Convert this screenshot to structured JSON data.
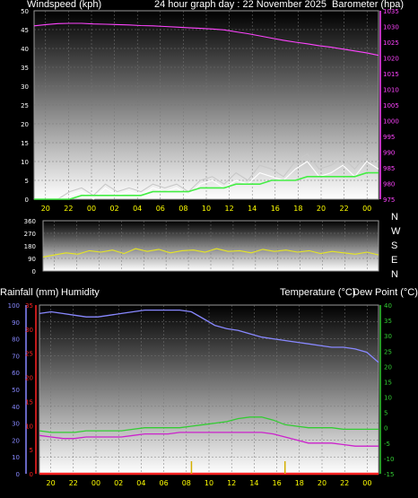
{
  "header": {
    "left_label": "Windspeed (kph)",
    "center_label": "24 hour graph day : 22 November 2025",
    "right_label": "Barometer (hpa)"
  },
  "lower_header": {
    "rainfall_label": "Rainfall (mm)",
    "humidity_label": "Humidity",
    "temperature_label": "Temperature (°C)",
    "dewpoint_label": "Dew Point (°C)"
  },
  "compass": [
    "N",
    "W",
    "S",
    "E",
    "N"
  ],
  "colors": {
    "wind_speed": "#ffffff",
    "wind_gust": "#c8c8c8",
    "wind_avg": "#44ee44",
    "barometer": "#ff44ff",
    "direction": "#e6e620",
    "humidity": "#8888ff",
    "temperature": "#33cc33",
    "dewpoint": "#cc22cc",
    "rainfall": "#ff2222",
    "rain_tick": "#d4b000",
    "axis_text": "#ffffff",
    "time_text": "#ffff00"
  },
  "chart_data": [
    {
      "type": "line",
      "name": "wind-and-pressure",
      "x_tick_labels": [
        "20",
        "22",
        "00",
        "02",
        "04",
        "06",
        "08",
        "10",
        "12",
        "14",
        "16",
        "18",
        "20",
        "22",
        "00"
      ],
      "y_left_ticks": [
        "0",
        "5",
        "10",
        "15",
        "20",
        "25",
        "30",
        "35",
        "40",
        "45",
        "50"
      ],
      "y_right_ticks": [
        "975",
        "980",
        "985",
        "990",
        "995",
        "1000",
        "1005",
        "1010",
        "1015",
        "1020",
        "1025",
        "1030",
        "1035"
      ],
      "ylim_left": [
        0,
        50
      ],
      "ylim_right": [
        975,
        1035
      ],
      "series": [
        {
          "key": "barometer",
          "axis": "right",
          "values": [
            1030.2,
            1030.6,
            1030.9,
            1031,
            1031,
            1030.8,
            1030.7,
            1030.6,
            1030.5,
            1030.3,
            1030.2,
            1030,
            1029.8,
            1029.6,
            1029.4,
            1029.2,
            1028.9,
            1028.3,
            1027.7,
            1027,
            1026.3,
            1025.6,
            1025,
            1024.5,
            1023.9,
            1023.4,
            1022.8,
            1022.2,
            1021.6,
            1020.8
          ]
        },
        {
          "key": "wind_gust",
          "axis": "left",
          "values": [
            0,
            0,
            0,
            2,
            3,
            1,
            4,
            2,
            3,
            2,
            4,
            3,
            4,
            2,
            5,
            6,
            4,
            7,
            5,
            9,
            8,
            6,
            10,
            12,
            8,
            9,
            11,
            8,
            12,
            10
          ]
        },
        {
          "key": "wind_speed",
          "axis": "left",
          "values": [
            0,
            0,
            0,
            1,
            2,
            0,
            3,
            1,
            2,
            1,
            3,
            2,
            3,
            1,
            4,
            5,
            3,
            5,
            4,
            7,
            6,
            5,
            8,
            10,
            6,
            7,
            9,
            6,
            10,
            8
          ]
        },
        {
          "key": "wind_avg",
          "axis": "left",
          "values": [
            0,
            0,
            0,
            0,
            1,
            1,
            1,
            1,
            1,
            1,
            2,
            2,
            2,
            2,
            3,
            3,
            3,
            4,
            4,
            4,
            5,
            5,
            5,
            6,
            6,
            6,
            6,
            6,
            7,
            7
          ]
        }
      ]
    },
    {
      "type": "line",
      "name": "wind-direction",
      "x_tick_labels": [
        "20",
        "22",
        "00",
        "02",
        "04",
        "06",
        "08",
        "10",
        "12",
        "14",
        "16",
        "18",
        "20",
        "22",
        "00"
      ],
      "y_ticks": [
        "0",
        "90",
        "180",
        "270",
        "360"
      ],
      "ylim": [
        0,
        360
      ],
      "series": [
        {
          "key": "direction",
          "values": [
            100,
            115,
            130,
            120,
            145,
            135,
            150,
            125,
            160,
            140,
            155,
            130,
            145,
            150,
            135,
            160,
            140,
            145,
            130,
            155,
            140,
            150,
            135,
            145,
            125,
            140,
            130,
            120,
            135,
            115
          ]
        }
      ]
    },
    {
      "type": "line",
      "name": "temperature-humidity-rain",
      "x_tick_labels": [
        "20",
        "22",
        "00",
        "02",
        "04",
        "06",
        "08",
        "10",
        "12",
        "14",
        "16",
        "18",
        "20",
        "22",
        "00"
      ],
      "y_humidity_ticks": [
        "100",
        "90",
        "80",
        "70",
        "60",
        "50",
        "40",
        "30",
        "20",
        "10",
        "0"
      ],
      "y_rain_ticks": [
        "35",
        "30",
        "25",
        "20",
        "15",
        "10",
        "5",
        "0"
      ],
      "y_temp_ticks": [
        "40",
        "35",
        "30",
        "25",
        "20",
        "15",
        "10",
        "5",
        "0",
        "-5",
        "-10",
        "-15"
      ],
      "ylim_humidity": [
        0,
        100
      ],
      "ylim_rain": [
        0,
        35
      ],
      "ylim_temp": [
        -15,
        40
      ],
      "series": [
        {
          "key": "humidity",
          "axis": "humidity",
          "values": [
            95,
            96,
            95,
            94,
            93,
            93,
            94,
            95,
            96,
            97,
            97,
            97,
            97,
            96,
            92,
            88,
            86,
            85,
            83,
            81,
            80,
            79,
            78,
            77,
            76,
            75,
            75,
            74,
            72,
            66
          ]
        },
        {
          "key": "temperature",
          "axis": "temp",
          "values": [
            -1,
            -1.5,
            -1.5,
            -1.5,
            -1,
            -1,
            -1,
            -1,
            -0.5,
            0,
            0,
            0,
            0,
            0.5,
            1,
            1.5,
            2,
            3,
            3.5,
            3.5,
            2.5,
            1,
            0.5,
            0,
            0,
            0,
            -0.5,
            -0.5,
            -0.5,
            -0.5
          ]
        },
        {
          "key": "dewpoint",
          "axis": "temp",
          "values": [
            -2.5,
            -3,
            -3.5,
            -3.5,
            -3,
            -3,
            -3,
            -3,
            -2.5,
            -2,
            -2,
            -2,
            -1.5,
            -1.5,
            -1.5,
            -1.5,
            -1.5,
            -1.5,
            -1.5,
            -1.5,
            -2,
            -3,
            -4,
            -5,
            -5,
            -5,
            -5.5,
            -6,
            -6,
            -6
          ]
        },
        {
          "key": "rainfall",
          "axis": "rain",
          "values": [
            0,
            0,
            0,
            0,
            0,
            0,
            0,
            0,
            0,
            0,
            0,
            0,
            0,
            0,
            0,
            0,
            0,
            0,
            0,
            0,
            0,
            0,
            0,
            0,
            0,
            0,
            0,
            0,
            0,
            0
          ]
        }
      ],
      "rain_ticks_at_index": [
        13,
        21
      ]
    }
  ]
}
